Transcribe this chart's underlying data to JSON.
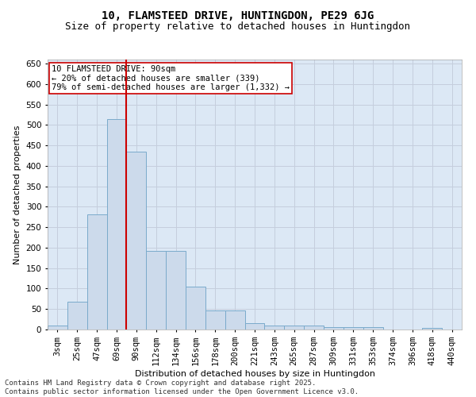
{
  "title": "10, FLAMSTEED DRIVE, HUNTINGDON, PE29 6JG",
  "subtitle": "Size of property relative to detached houses in Huntingdon",
  "xlabel": "Distribution of detached houses by size in Huntingdon",
  "ylabel": "Number of detached properties",
  "categories": [
    "3sqm",
    "25sqm",
    "47sqm",
    "69sqm",
    "90sqm",
    "112sqm",
    "134sqm",
    "156sqm",
    "178sqm",
    "200sqm",
    "221sqm",
    "243sqm",
    "265sqm",
    "287sqm",
    "309sqm",
    "331sqm",
    "353sqm",
    "374sqm",
    "396sqm",
    "418sqm",
    "440sqm"
  ],
  "values": [
    10,
    67,
    282,
    515,
    435,
    192,
    192,
    105,
    46,
    46,
    16,
    10,
    10,
    10,
    5,
    5,
    5,
    0,
    0,
    3,
    0
  ],
  "bar_color": "#ccdaeb",
  "bar_edge_color": "#7aaacb",
  "vline_x_index": 3,
  "vline_color": "#cc0000",
  "annotation_text": "10 FLAMSTEED DRIVE: 90sqm\n← 20% of detached houses are smaller (339)\n79% of semi-detached houses are larger (1,332) →",
  "annotation_box_facecolor": "#ffffff",
  "annotation_box_edgecolor": "#cc0000",
  "ylim": [
    0,
    660
  ],
  "yticks": [
    0,
    50,
    100,
    150,
    200,
    250,
    300,
    350,
    400,
    450,
    500,
    550,
    600,
    650
  ],
  "grid_color": "#c5cedd",
  "plot_bg_color": "#dce8f5",
  "footer_line1": "Contains HM Land Registry data © Crown copyright and database right 2025.",
  "footer_line2": "Contains public sector information licensed under the Open Government Licence v3.0.",
  "title_fontsize": 10,
  "subtitle_fontsize": 9,
  "axis_label_fontsize": 8,
  "tick_fontsize": 7.5,
  "annotation_fontsize": 7.5,
  "footer_fontsize": 6.5
}
